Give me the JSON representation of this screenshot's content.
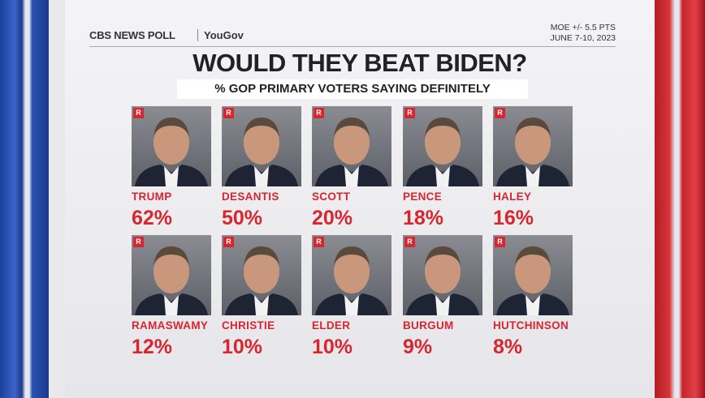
{
  "header": {
    "logo": "CBS NEWS POLL",
    "partner": "YouGov",
    "moe": "MOE +/- 5.5 PTS",
    "dates": "JUNE 7-10, 2023"
  },
  "title": "WOULD THEY BEAT BIDEN?",
  "subtitle": "% GOP PRIMARY VOTERS SAYING DEFINITELY",
  "candidates": [
    {
      "party": "R",
      "name": "TRUMP",
      "pct": "62%"
    },
    {
      "party": "R",
      "name": "DESANTIS",
      "pct": "50%"
    },
    {
      "party": "R",
      "name": "SCOTT",
      "pct": "20%"
    },
    {
      "party": "R",
      "name": "PENCE",
      "pct": "18%"
    },
    {
      "party": "R",
      "name": "HALEY",
      "pct": "16%"
    },
    {
      "party": "R",
      "name": "RAMASWAMY",
      "pct": "12%"
    },
    {
      "party": "R",
      "name": "CHRISTIE",
      "pct": "10%"
    },
    {
      "party": "R",
      "name": "ELDER",
      "pct": "10%"
    },
    {
      "party": "R",
      "name": "BURGUM",
      "pct": "9%"
    },
    {
      "party": "R",
      "name": "HUTCHINSON",
      "pct": "8%"
    }
  ]
}
